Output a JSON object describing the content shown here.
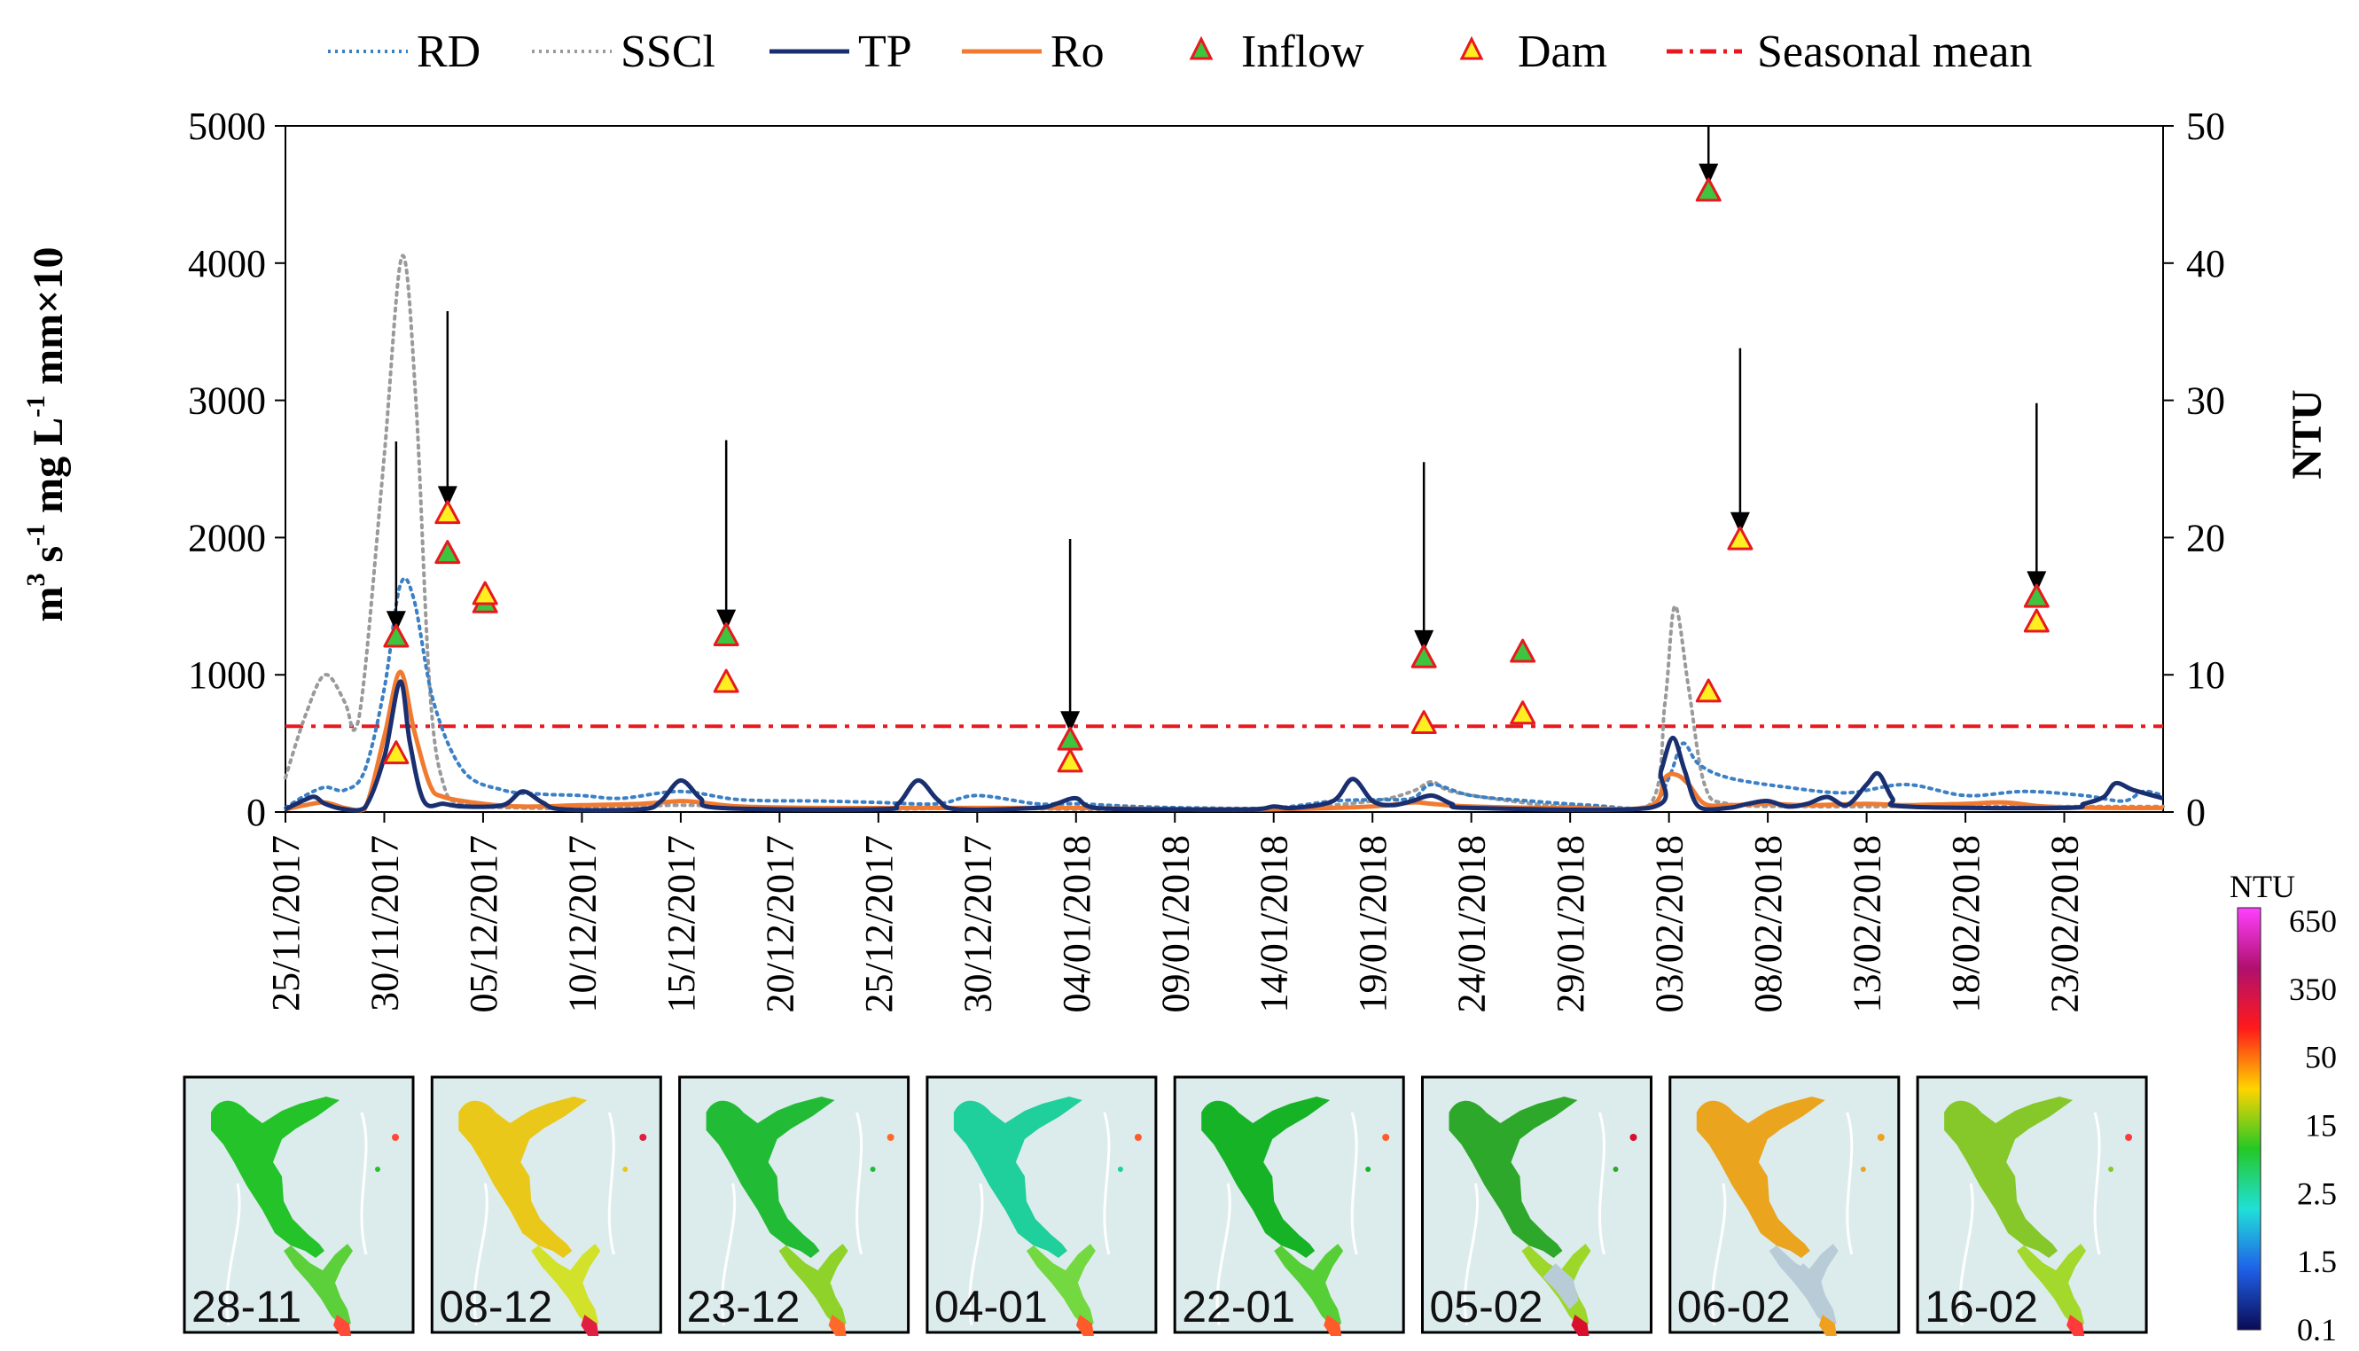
{
  "chart_data": {
    "type": "line",
    "title": "",
    "ylabel_left_parts": {
      "a": "m",
      "a_sup": "3",
      "b": " s",
      "b_sup": "-1",
      "c": "   mg L",
      "c_sup": "-1",
      "d": "   mm×10"
    },
    "ylabel_right": "NTU",
    "ylim_left": [
      0,
      5000
    ],
    "ylim_right": [
      0,
      50
    ],
    "yticks_left": [
      "0",
      "1000",
      "2000",
      "3000",
      "4000",
      "5000"
    ],
    "yticks_right": [
      "0",
      "10",
      "20",
      "30",
      "40",
      "50"
    ],
    "x_start_day": 0,
    "x_end_day": 95,
    "xticks": [
      {
        "day": 0,
        "label": "25/11/2017"
      },
      {
        "day": 5,
        "label": "30/11/2017"
      },
      {
        "day": 10,
        "label": "05/12/2017"
      },
      {
        "day": 15,
        "label": "10/12/2017"
      },
      {
        "day": 20,
        "label": "15/12/2017"
      },
      {
        "day": 25,
        "label": "20/12/2017"
      },
      {
        "day": 30,
        "label": "25/12/2017"
      },
      {
        "day": 35,
        "label": "30/12/2017"
      },
      {
        "day": 40,
        "label": "04/01/2018"
      },
      {
        "day": 45,
        "label": "09/01/2018"
      },
      {
        "day": 50,
        "label": "14/01/2018"
      },
      {
        "day": 55,
        "label": "19/01/2018"
      },
      {
        "day": 60,
        "label": "24/01/2018"
      },
      {
        "day": 65,
        "label": "29/01/2018"
      },
      {
        "day": 70,
        "label": "03/02/2018"
      },
      {
        "day": 75,
        "label": "08/02/2018"
      },
      {
        "day": 80,
        "label": "13/02/2018"
      },
      {
        "day": 85,
        "label": "18/02/2018"
      },
      {
        "day": 90,
        "label": "23/02/2018"
      }
    ],
    "legend": [
      "RD",
      "SSCl",
      "TP",
      "Ro",
      "Inflow",
      "Dam",
      "Seasonal mean"
    ],
    "series": [
      {
        "name": "RD",
        "axis": "left",
        "style": "dotted",
        "color": "#3b7fc4",
        "points": [
          [
            0,
            30
          ],
          [
            1,
            120
          ],
          [
            2,
            180
          ],
          [
            3,
            160
          ],
          [
            4,
            300
          ],
          [
            5,
            900
          ],
          [
            5.8,
            1650
          ],
          [
            6.5,
            1550
          ],
          [
            7.5,
            800
          ],
          [
            9,
            300
          ],
          [
            11,
            160
          ],
          [
            13,
            130
          ],
          [
            15,
            120
          ],
          [
            17,
            100
          ],
          [
            20,
            150
          ],
          [
            23,
            90
          ],
          [
            27,
            80
          ],
          [
            30,
            70
          ],
          [
            33,
            60
          ],
          [
            35,
            120
          ],
          [
            38,
            60
          ],
          [
            40,
            60
          ],
          [
            43,
            40
          ],
          [
            46,
            30
          ],
          [
            50,
            30
          ],
          [
            53,
            80
          ],
          [
            55,
            90
          ],
          [
            57,
            100
          ],
          [
            58,
            200
          ],
          [
            60,
            120
          ],
          [
            63,
            80
          ],
          [
            66,
            50
          ],
          [
            69,
            40
          ],
          [
            70,
            250
          ],
          [
            70.7,
            500
          ],
          [
            71.5,
            350
          ],
          [
            73,
            250
          ],
          [
            76,
            180
          ],
          [
            79,
            140
          ],
          [
            82,
            200
          ],
          [
            85,
            120
          ],
          [
            88,
            150
          ],
          [
            91,
            120
          ],
          [
            93,
            80
          ],
          [
            94,
            150
          ],
          [
            95,
            120
          ]
        ]
      },
      {
        "name": "SSCl",
        "axis": "left",
        "style": "dotted",
        "color": "#9a9a9a",
        "points": [
          [
            0,
            250
          ],
          [
            1,
            700
          ],
          [
            2,
            1000
          ],
          [
            3,
            800
          ],
          [
            3.5,
            600
          ],
          [
            4,
            1000
          ],
          [
            5,
            2600
          ],
          [
            5.9,
            4050
          ],
          [
            6.6,
            3000
          ],
          [
            7.3,
            900
          ],
          [
            8,
            200
          ],
          [
            9,
            60
          ],
          [
            12,
            30
          ],
          [
            16,
            30
          ],
          [
            20,
            50
          ],
          [
            25,
            30
          ],
          [
            30,
            20
          ],
          [
            35,
            30
          ],
          [
            40,
            20
          ],
          [
            45,
            20
          ],
          [
            50,
            20
          ],
          [
            55,
            80
          ],
          [
            57,
            150
          ],
          [
            58,
            220
          ],
          [
            59,
            150
          ],
          [
            62,
            80
          ],
          [
            65,
            40
          ],
          [
            69,
            50
          ],
          [
            69.8,
            800
          ],
          [
            70.3,
            1500
          ],
          [
            71,
            900
          ],
          [
            71.8,
            200
          ],
          [
            73,
            60
          ],
          [
            77,
            40
          ],
          [
            81,
            40
          ],
          [
            86,
            40
          ],
          [
            90,
            40
          ],
          [
            95,
            40
          ]
        ]
      },
      {
        "name": "TP",
        "axis": "left",
        "style": "solid",
        "color": "#1a2f70",
        "points": [
          [
            0,
            20
          ],
          [
            1,
            90
          ],
          [
            1.5,
            110
          ],
          [
            2,
            60
          ],
          [
            3,
            20
          ],
          [
            4,
            30
          ],
          [
            5,
            400
          ],
          [
            5.8,
            950
          ],
          [
            6.3,
            500
          ],
          [
            7,
            80
          ],
          [
            8,
            60
          ],
          [
            9,
            40
          ],
          [
            11,
            50
          ],
          [
            12,
            150
          ],
          [
            13,
            70
          ],
          [
            14,
            20
          ],
          [
            18,
            20
          ],
          [
            19,
            80
          ],
          [
            20,
            230
          ],
          [
            21,
            100
          ],
          [
            22,
            30
          ],
          [
            30,
            20
          ],
          [
            31,
            60
          ],
          [
            32,
            230
          ],
          [
            33,
            90
          ],
          [
            34,
            20
          ],
          [
            38,
            30
          ],
          [
            39,
            60
          ],
          [
            40,
            100
          ],
          [
            41,
            30
          ],
          [
            45,
            20
          ],
          [
            49,
            20
          ],
          [
            50,
            40
          ],
          [
            51,
            30
          ],
          [
            53,
            80
          ],
          [
            54,
            240
          ],
          [
            55,
            80
          ],
          [
            56,
            50
          ],
          [
            57,
            80
          ],
          [
            58,
            120
          ],
          [
            59,
            60
          ],
          [
            60,
            30
          ],
          [
            69,
            30
          ],
          [
            69.6,
            300
          ],
          [
            70.2,
            540
          ],
          [
            70.8,
            300
          ],
          [
            71.5,
            40
          ],
          [
            73,
            30
          ],
          [
            74,
            60
          ],
          [
            75,
            80
          ],
          [
            76,
            40
          ],
          [
            77,
            60
          ],
          [
            78,
            110
          ],
          [
            79,
            50
          ],
          [
            80,
            200
          ],
          [
            80.6,
            280
          ],
          [
            81.3,
            100
          ],
          [
            82,
            40
          ],
          [
            90,
            30
          ],
          [
            91,
            60
          ],
          [
            92,
            110
          ],
          [
            92.6,
            210
          ],
          [
            93.5,
            160
          ],
          [
            95,
            100
          ]
        ]
      },
      {
        "name": "Ro",
        "axis": "left",
        "style": "solid",
        "color": "#f07a30",
        "points": [
          [
            0,
            20
          ],
          [
            1,
            50
          ],
          [
            2,
            70
          ],
          [
            3,
            30
          ],
          [
            4,
            20
          ],
          [
            5,
            550
          ],
          [
            5.8,
            1020
          ],
          [
            6.5,
            600
          ],
          [
            7.3,
            200
          ],
          [
            8,
            110
          ],
          [
            10,
            60
          ],
          [
            12,
            40
          ],
          [
            15,
            50
          ],
          [
            18,
            60
          ],
          [
            20,
            80
          ],
          [
            21,
            70
          ],
          [
            23,
            40
          ],
          [
            27,
            30
          ],
          [
            32,
            30
          ],
          [
            36,
            30
          ],
          [
            40,
            30
          ],
          [
            45,
            20
          ],
          [
            50,
            20
          ],
          [
            55,
            40
          ],
          [
            57,
            70
          ],
          [
            58,
            60
          ],
          [
            60,
            40
          ],
          [
            65,
            30
          ],
          [
            69,
            40
          ],
          [
            69.8,
            250
          ],
          [
            70.4,
            270
          ],
          [
            71,
            200
          ],
          [
            71.8,
            60
          ],
          [
            73,
            50
          ],
          [
            75,
            60
          ],
          [
            77,
            50
          ],
          [
            80,
            60
          ],
          [
            82,
            50
          ],
          [
            85,
            60
          ],
          [
            87,
            70
          ],
          [
            89,
            40
          ],
          [
            92,
            30
          ],
          [
            95,
            30
          ]
        ]
      }
    ],
    "markers": [
      {
        "name": "Inflow",
        "axis": "left",
        "fill": "#3fc43f",
        "points": [
          [
            5.6,
            1270
          ],
          [
            8.2,
            1880
          ],
          [
            10.1,
            1520
          ],
          [
            22.3,
            1280
          ],
          [
            39.7,
            520
          ],
          [
            57.6,
            1120
          ],
          [
            62.6,
            1160
          ],
          [
            72.0,
            4520
          ],
          [
            88.6,
            1560
          ]
        ]
      },
      {
        "name": "Dam",
        "axis": "left",
        "fill": "#ffee22",
        "points": [
          [
            5.6,
            420
          ],
          [
            8.2,
            2170
          ],
          [
            10.1,
            1580
          ],
          [
            22.3,
            940
          ],
          [
            39.7,
            360
          ],
          [
            57.6,
            640
          ],
          [
            62.6,
            710
          ],
          [
            72.0,
            870
          ],
          [
            73.6,
            1980
          ],
          [
            88.6,
            1380
          ]
        ]
      }
    ],
    "seasonal_mean": {
      "axis": "left",
      "value": 625,
      "color": "#e8191e"
    },
    "arrows": [
      {
        "day": 5.6,
        "top": 2700,
        "bottom": 1310
      },
      {
        "day": 8.2,
        "top": 3650,
        "bottom": 2220
      },
      {
        "day": 22.3,
        "top": 2710,
        "bottom": 1320
      },
      {
        "day": 39.7,
        "top": 1990,
        "bottom": 580
      },
      {
        "day": 57.6,
        "top": 2550,
        "bottom": 1170
      },
      {
        "day": 72.0,
        "top": 5000,
        "bottom": 4570
      },
      {
        "day": 73.6,
        "top": 3380,
        "bottom": 2030
      },
      {
        "day": 88.6,
        "top": 2980,
        "bottom": 1600
      }
    ],
    "map_panels": [
      "28-11",
      "08-12",
      "23-12",
      "04-01",
      "22-01",
      "05-02",
      "06-02",
      "16-02"
    ],
    "colorbar": {
      "title": "NTU",
      "labels": [
        "650",
        "350",
        "50",
        "15",
        "2.5",
        "1.5",
        "0.1"
      ],
      "colors": [
        "#ff40ff",
        "#b0106e",
        "#ff1a1a",
        "#ffd400",
        "#25c825",
        "#20e0d8",
        "#1f60e8",
        "#0b0b55"
      ]
    },
    "panel_schemes": [
      {
        "water": "#17c229",
        "upper": "#24c32a",
        "lower": "#5cd03a",
        "tip": "#ff4a3a",
        "gray": false
      },
      {
        "water": "#f2d51f",
        "upper": "#e9c81a",
        "lower": "#d2e22a",
        "tip": "#e02040",
        "gray": false
      },
      {
        "water": "#2bc63a",
        "upper": "#22bb36",
        "lower": "#8ed22a",
        "tip": "#ff6a2a",
        "gray": false
      },
      {
        "water": "#21d0ab",
        "upper": "#1fcf9c",
        "lower": "#74d940",
        "tip": "#ff5a2a",
        "gray": false
      },
      {
        "water": "#1dbf2c",
        "upper": "#17b327",
        "lower": "#56cf37",
        "tip": "#ff5a2a",
        "gray": false
      },
      {
        "water": "#52c52d",
        "upper": "#2ea82a",
        "lower": "#9cd72a",
        "tip": "#d8102c",
        "gray": true
      },
      {
        "water": "#b8ccd8",
        "upper": "#eaa41e",
        "lower": "#b8ccd8",
        "tip": "#f0a020",
        "gray": true
      },
      {
        "water": "#8ccd2a",
        "upper": "#86c82a",
        "lower": "#a3d82c",
        "tip": "#ff3a3a",
        "gray": false
      }
    ]
  }
}
